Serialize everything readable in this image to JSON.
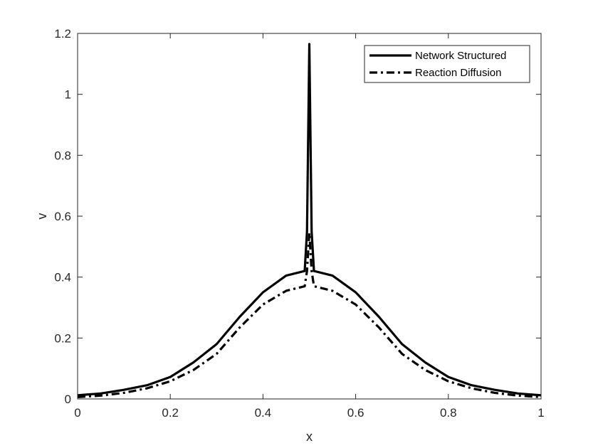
{
  "chart_data": {
    "type": "line",
    "title": "",
    "xlabel": "x",
    "ylabel": "v",
    "xlim": [
      0,
      1
    ],
    "ylim": [
      0,
      1.2
    ],
    "xticks": [
      "0",
      "0.2",
      "0.4",
      "0.6",
      "0.8",
      "1"
    ],
    "yticks": [
      "0",
      "0.2",
      "0.4",
      "0.6",
      "0.8",
      "1",
      "1.2"
    ],
    "grid": false,
    "legend_position": "top-right",
    "series": [
      {
        "name": "Network Structured",
        "style": "solid",
        "color": "#000000",
        "x": [
          0,
          0.05,
          0.1,
          0.15,
          0.2,
          0.25,
          0.3,
          0.35,
          0.4,
          0.45,
          0.49,
          0.495,
          0.5,
          0.505,
          0.51,
          0.55,
          0.6,
          0.65,
          0.7,
          0.75,
          0.8,
          0.85,
          0.9,
          0.95,
          1
        ],
        "y": [
          0.012,
          0.018,
          0.03,
          0.045,
          0.072,
          0.12,
          0.18,
          0.27,
          0.35,
          0.405,
          0.42,
          0.55,
          1.165,
          0.55,
          0.42,
          0.405,
          0.35,
          0.27,
          0.18,
          0.12,
          0.072,
          0.045,
          0.03,
          0.018,
          0.012
        ]
      },
      {
        "name": "Reaction Diffusion",
        "style": "dashdot",
        "color": "#000000",
        "x": [
          0,
          0.05,
          0.1,
          0.15,
          0.2,
          0.25,
          0.3,
          0.35,
          0.4,
          0.45,
          0.49,
          0.495,
          0.5,
          0.505,
          0.51,
          0.55,
          0.6,
          0.65,
          0.7,
          0.75,
          0.8,
          0.85,
          0.9,
          0.95,
          1
        ],
        "y": [
          0.006,
          0.011,
          0.02,
          0.035,
          0.058,
          0.095,
          0.148,
          0.235,
          0.31,
          0.355,
          0.37,
          0.42,
          0.545,
          0.42,
          0.37,
          0.355,
          0.31,
          0.235,
          0.148,
          0.095,
          0.058,
          0.035,
          0.02,
          0.011,
          0.006
        ]
      }
    ]
  }
}
